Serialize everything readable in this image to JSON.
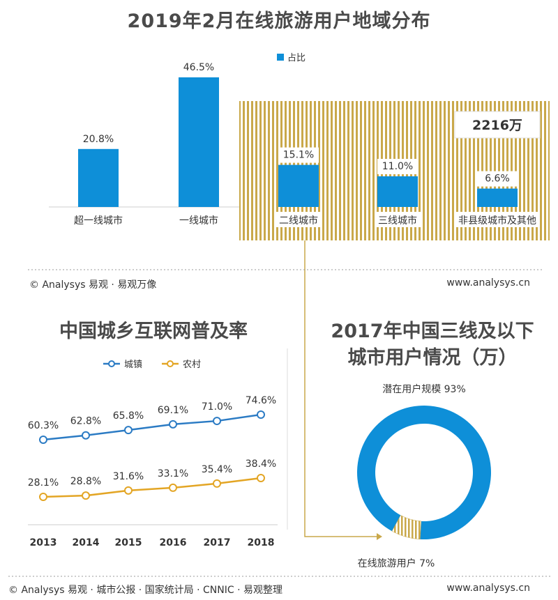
{
  "header": {
    "title": "2019年2月在线旅游用户地域分布"
  },
  "chart_data": [
    {
      "type": "bar",
      "title": "2019年2月在线旅游用户地域分布",
      "legend": [
        "占比"
      ],
      "legend_position": "top",
      "categories": [
        "超一线城市",
        "一线城市",
        "二线城市",
        "三线城市",
        "非县级城市及其他"
      ],
      "values": [
        20.8,
        46.5,
        15.1,
        11.0,
        6.6
      ],
      "value_labels": [
        "20.8%",
        "46.5%",
        "15.1%",
        "11.0%",
        "6.6%"
      ],
      "ylim": [
        0,
        50
      ],
      "annotation": "2216万",
      "colors": {
        "bar": "#0e8fd8",
        "highlight_bg": "#c9a84a"
      }
    },
    {
      "type": "line",
      "title": "中国城乡互联网普及率",
      "x": [
        "2013",
        "2014",
        "2015",
        "2016",
        "2017",
        "2018"
      ],
      "series": [
        {
          "name": "城镇",
          "values": [
            60.3,
            62.8,
            65.8,
            69.1,
            71.0,
            74.6
          ],
          "labels": [
            "60.3%",
            "62.8%",
            "65.8%",
            "69.1%",
            "71.0%",
            "74.6%"
          ],
          "color": "#2b7bc4"
        },
        {
          "name": "农村",
          "values": [
            28.1,
            28.8,
            31.6,
            33.1,
            35.4,
            38.4
          ],
          "labels": [
            "28.1%",
            "28.8%",
            "31.6%",
            "33.1%",
            "35.4%",
            "38.4%"
          ],
          "color": "#e3a524"
        }
      ],
      "legend_position": "top"
    },
    {
      "type": "pie",
      "title": "2017年中国三线及以下城市用户情况（万）",
      "title_lines": [
        "2017年中国三线及以下",
        "城市用户情况（万）"
      ],
      "slices": [
        {
          "label": "潜在用户规模 93%",
          "value": 93,
          "color": "#0e8fd8"
        },
        {
          "label": "在线旅游用户 7%",
          "value": 7,
          "color": "#c9a84a"
        }
      ]
    }
  ],
  "footer_top": {
    "left": "© Analysys 易观 · 易观万像",
    "right": "www.analysys.cn"
  },
  "footer_bottom": {
    "left": "© Analysys 易观 · 城市公报 · 国家统计局 · CNNIC · 易观整理",
    "right": "www.analysys.cn"
  }
}
